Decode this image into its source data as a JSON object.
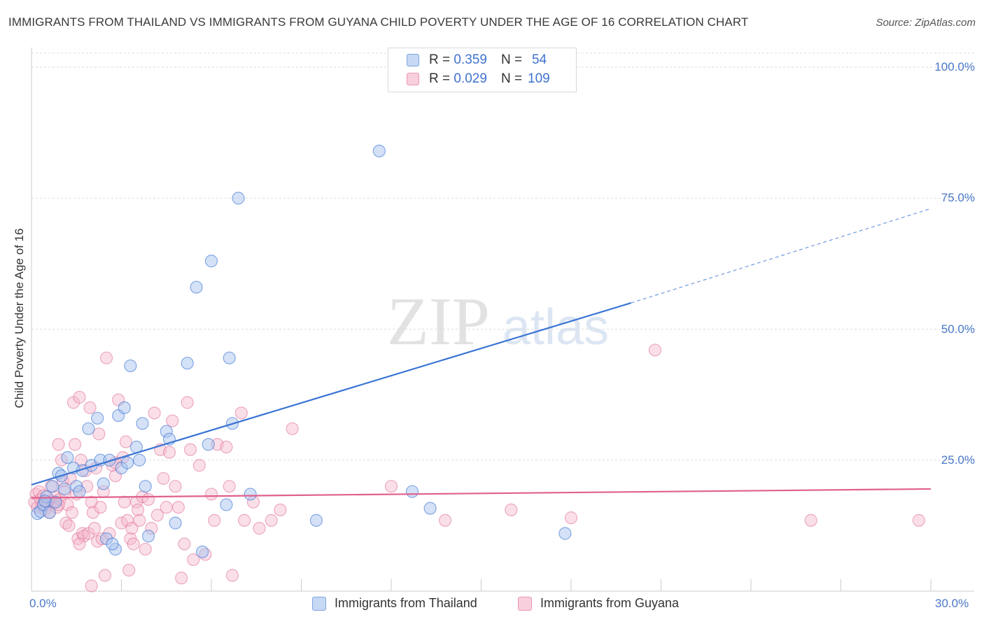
{
  "title": "IMMIGRANTS FROM THAILAND VS IMMIGRANTS FROM GUYANA CHILD POVERTY UNDER THE AGE OF 16 CORRELATION CHART",
  "source": "Source: ZipAtlas.com",
  "watermark": {
    "zip": "ZIP",
    "atlas": "atlas"
  },
  "colors": {
    "thailand": "#3f78d6",
    "guyana": "#e07098",
    "thailand_fill": "#a9c4ee",
    "guyana_fill": "#f4b8cc",
    "grid": "#dddddd",
    "tick": "#4a78c8"
  },
  "legend": {
    "rows": [
      {
        "r_label": "R =",
        "r_value": "0.359",
        "n_label": "N =",
        "n_value": "54"
      },
      {
        "r_label": "R =",
        "r_value": "0.029",
        "n_label": "N =",
        "n_value": "109"
      }
    ]
  },
  "chart_data": {
    "type": "scatter",
    "title": "IMMIGRANTS FROM THAILAND VS IMMIGRANTS FROM GUYANA CHILD POVERTY UNDER THE AGE OF 16 CORRELATION CHART",
    "xlabel": "",
    "ylabel": "Child Poverty Under the Age of 16",
    "xlim": [
      0,
      30
    ],
    "ylim": [
      0,
      100
    ],
    "x_tick_labels": [
      "0.0%",
      "30.0%"
    ],
    "y_ticks": [
      25,
      50,
      75,
      100
    ],
    "y_tick_labels": [
      "25.0%",
      "50.0%",
      "75.0%",
      "100.0%"
    ],
    "grid": true,
    "series": [
      {
        "name": "Immigrants from Thailand",
        "r": 0.359,
        "n": 54,
        "trend": {
          "x0": 0,
          "y0": 20.3,
          "x1": 20,
          "y1": 55.0,
          "dash_to_x": 30,
          "dash_to_y": 73.0
        },
        "points": [
          [
            0.2,
            14.8
          ],
          [
            0.3,
            15.2
          ],
          [
            0.4,
            16.5
          ],
          [
            0.5,
            18.0
          ],
          [
            0.6,
            15.0
          ],
          [
            0.7,
            20.0
          ],
          [
            0.8,
            17.0
          ],
          [
            0.9,
            22.5
          ],
          [
            1.0,
            22.0
          ],
          [
            1.2,
            25.5
          ],
          [
            1.4,
            23.5
          ],
          [
            1.5,
            20.0
          ],
          [
            1.6,
            19.0
          ],
          [
            1.7,
            23.0
          ],
          [
            1.9,
            31.0
          ],
          [
            2.0,
            24.0
          ],
          [
            2.2,
            33.0
          ],
          [
            2.3,
            25.0
          ],
          [
            2.4,
            20.5
          ],
          [
            2.5,
            10.0
          ],
          [
            2.6,
            25.0
          ],
          [
            2.8,
            8.0
          ],
          [
            2.9,
            33.5
          ],
          [
            3.0,
            23.5
          ],
          [
            3.1,
            35.0
          ],
          [
            3.2,
            24.5
          ],
          [
            3.3,
            43.0
          ],
          [
            3.5,
            27.5
          ],
          [
            3.6,
            25.0
          ],
          [
            3.7,
            32.0
          ],
          [
            3.8,
            20.0
          ],
          [
            3.9,
            10.5
          ],
          [
            4.5,
            30.5
          ],
          [
            4.6,
            29.0
          ],
          [
            4.8,
            13.0
          ],
          [
            5.2,
            43.5
          ],
          [
            5.5,
            58.0
          ],
          [
            5.7,
            7.5
          ],
          [
            5.9,
            28.0
          ],
          [
            6.0,
            63.0
          ],
          [
            6.5,
            16.5
          ],
          [
            6.6,
            44.5
          ],
          [
            6.7,
            32.0
          ],
          [
            6.9,
            75.0
          ],
          [
            7.3,
            18.5
          ],
          [
            9.5,
            13.5
          ],
          [
            11.6,
            84.0
          ],
          [
            12.7,
            19.0
          ],
          [
            13.3,
            15.8
          ],
          [
            17.8,
            11.0
          ],
          [
            12.7,
            98.5
          ],
          [
            1.1,
            19.5
          ],
          [
            0.45,
            17.2
          ],
          [
            2.7,
            9.0
          ]
        ]
      },
      {
        "name": "Immigrants from Guyana",
        "r": 0.029,
        "n": 109,
        "trend": {
          "x0": 0,
          "y0": 17.8,
          "x1": 30,
          "y1": 19.5
        },
        "points": [
          [
            0.1,
            17.0
          ],
          [
            0.15,
            18.5
          ],
          [
            0.2,
            16.0
          ],
          [
            0.25,
            19.0
          ],
          [
            0.3,
            17.5
          ],
          [
            0.35,
            16.2
          ],
          [
            0.4,
            18.2
          ],
          [
            0.45,
            15.5
          ],
          [
            0.5,
            17.0
          ],
          [
            0.55,
            16.5
          ],
          [
            0.6,
            15.0
          ],
          [
            0.65,
            20.0
          ],
          [
            0.7,
            17.2
          ],
          [
            0.75,
            16.8
          ],
          [
            0.8,
            18.0
          ],
          [
            0.85,
            16.0
          ],
          [
            0.9,
            28.0
          ],
          [
            0.95,
            17.5
          ],
          [
            1.0,
            25.0
          ],
          [
            1.05,
            21.0
          ],
          [
            1.1,
            19.0
          ],
          [
            1.15,
            13.0
          ],
          [
            1.2,
            16.5
          ],
          [
            1.25,
            12.5
          ],
          [
            1.3,
            21.5
          ],
          [
            1.35,
            15.0
          ],
          [
            1.4,
            36.0
          ],
          [
            1.45,
            28.0
          ],
          [
            1.5,
            18.5
          ],
          [
            1.55,
            10.0
          ],
          [
            1.6,
            37.0
          ],
          [
            1.65,
            25.0
          ],
          [
            1.7,
            11.0
          ],
          [
            1.75,
            10.5
          ],
          [
            1.8,
            23.0
          ],
          [
            1.85,
            20.0
          ],
          [
            1.9,
            11.0
          ],
          [
            1.95,
            35.0
          ],
          [
            2.0,
            17.0
          ],
          [
            2.05,
            15.0
          ],
          [
            2.1,
            12.0
          ],
          [
            2.15,
            23.5
          ],
          [
            2.2,
            9.5
          ],
          [
            2.25,
            30.0
          ],
          [
            2.3,
            16.0
          ],
          [
            2.35,
            10.0
          ],
          [
            2.4,
            19.0
          ],
          [
            2.45,
            3.0
          ],
          [
            2.5,
            44.5
          ],
          [
            2.6,
            11.0
          ],
          [
            2.7,
            24.0
          ],
          [
            2.8,
            22.0
          ],
          [
            2.9,
            36.5
          ],
          [
            3.0,
            13.0
          ],
          [
            3.05,
            25.5
          ],
          [
            3.1,
            17.0
          ],
          [
            3.15,
            28.5
          ],
          [
            3.2,
            13.5
          ],
          [
            3.25,
            4.0
          ],
          [
            3.3,
            10.0
          ],
          [
            3.35,
            12.0
          ],
          [
            3.4,
            9.0
          ],
          [
            3.5,
            17.0
          ],
          [
            3.55,
            15.5
          ],
          [
            3.6,
            13.5
          ],
          [
            3.7,
            18.0
          ],
          [
            3.8,
            8.0
          ],
          [
            3.9,
            17.5
          ],
          [
            4.0,
            12.0
          ],
          [
            4.1,
            34.0
          ],
          [
            4.2,
            14.5
          ],
          [
            4.3,
            27.0
          ],
          [
            4.4,
            21.5
          ],
          [
            4.5,
            16.0
          ],
          [
            4.6,
            26.5
          ],
          [
            4.7,
            32.5
          ],
          [
            4.8,
            20.0
          ],
          [
            4.9,
            16.0
          ],
          [
            5.0,
            2.5
          ],
          [
            5.1,
            9.0
          ],
          [
            5.2,
            36.0
          ],
          [
            5.3,
            27.0
          ],
          [
            5.4,
            6.0
          ],
          [
            5.6,
            24.0
          ],
          [
            5.8,
            7.0
          ],
          [
            6.0,
            18.5
          ],
          [
            6.1,
            13.5
          ],
          [
            6.2,
            28.0
          ],
          [
            6.5,
            27.5
          ],
          [
            6.6,
            20.0
          ],
          [
            6.7,
            3.0
          ],
          [
            7.0,
            34.0
          ],
          [
            7.1,
            13.5
          ],
          [
            7.4,
            17.0
          ],
          [
            7.6,
            12.0
          ],
          [
            8.0,
            13.5
          ],
          [
            8.3,
            15.5
          ],
          [
            8.7,
            31.0
          ],
          [
            12.0,
            20.0
          ],
          [
            13.8,
            13.5
          ],
          [
            16.0,
            15.5
          ],
          [
            18.0,
            14.0
          ],
          [
            20.8,
            46.0
          ],
          [
            26.0,
            13.5
          ],
          [
            29.6,
            13.5
          ],
          [
            0.9,
            16.5
          ],
          [
            1.6,
            9.0
          ],
          [
            2.0,
            1.0
          ],
          [
            2.8,
            24.5
          ]
        ]
      }
    ]
  },
  "bottom_legend": {
    "thailand": "Immigrants from Thailand",
    "guyana": "Immigrants from Guyana"
  }
}
